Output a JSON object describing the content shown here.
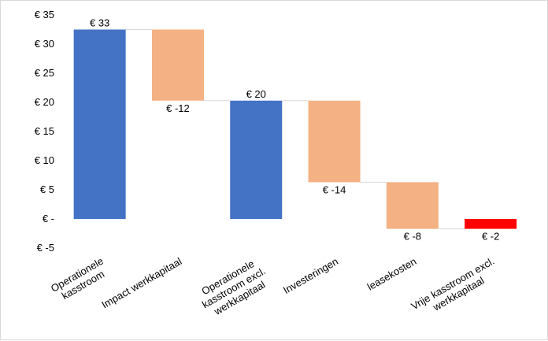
{
  "chart_data": {
    "type": "waterfall",
    "title": "",
    "xlabel": "",
    "ylabel": "",
    "ylim": [
      -5,
      35
    ],
    "y_ticks": [
      {
        "value": 35,
        "label": "€ 35"
      },
      {
        "value": 30,
        "label": "€ 30"
      },
      {
        "value": 25,
        "label": "€ 25"
      },
      {
        "value": 20,
        "label": "€ 20"
      },
      {
        "value": 15,
        "label": "€ 15"
      },
      {
        "value": 10,
        "label": "€ 10"
      },
      {
        "value": 5,
        "label": "€ 5"
      },
      {
        "value": 0,
        "label": "€ -"
      },
      {
        "value": -5,
        "label": "€ -5"
      }
    ],
    "bars": [
      {
        "category": [
          "Operationele",
          "kasstroom"
        ],
        "kind": "total",
        "start": 0,
        "end": 32.5,
        "value_label": "€ 33",
        "label_pos": "above",
        "color": "#4472c4"
      },
      {
        "category": [
          "Impact werkkapitaal"
        ],
        "kind": "decrease",
        "start": 32.5,
        "end": 20.3,
        "value_label": "€ -12",
        "label_pos": "below",
        "color": "#f4b183"
      },
      {
        "category": [
          "Operationele",
          "kasstroom excl.",
          "werkkapitaal"
        ],
        "kind": "total",
        "start": 0,
        "end": 20.3,
        "value_label": "€ 20",
        "label_pos": "above",
        "color": "#4472c4"
      },
      {
        "category": [
          "Investeringen"
        ],
        "kind": "decrease",
        "start": 20.3,
        "end": 6.3,
        "value_label": "€ -14",
        "label_pos": "below",
        "color": "#f4b183"
      },
      {
        "category": [
          "leasekosten"
        ],
        "kind": "decrease",
        "start": 6.3,
        "end": -1.7,
        "value_label": "€ -8",
        "label_pos": "below",
        "color": "#f4b183"
      },
      {
        "category": [
          "Vrije kasstroom excl.",
          "werkkapitaal"
        ],
        "kind": "total",
        "start": 0,
        "end": -1.7,
        "value_label": "€ -2",
        "label_pos": "below",
        "color": "#ff0000"
      }
    ]
  }
}
